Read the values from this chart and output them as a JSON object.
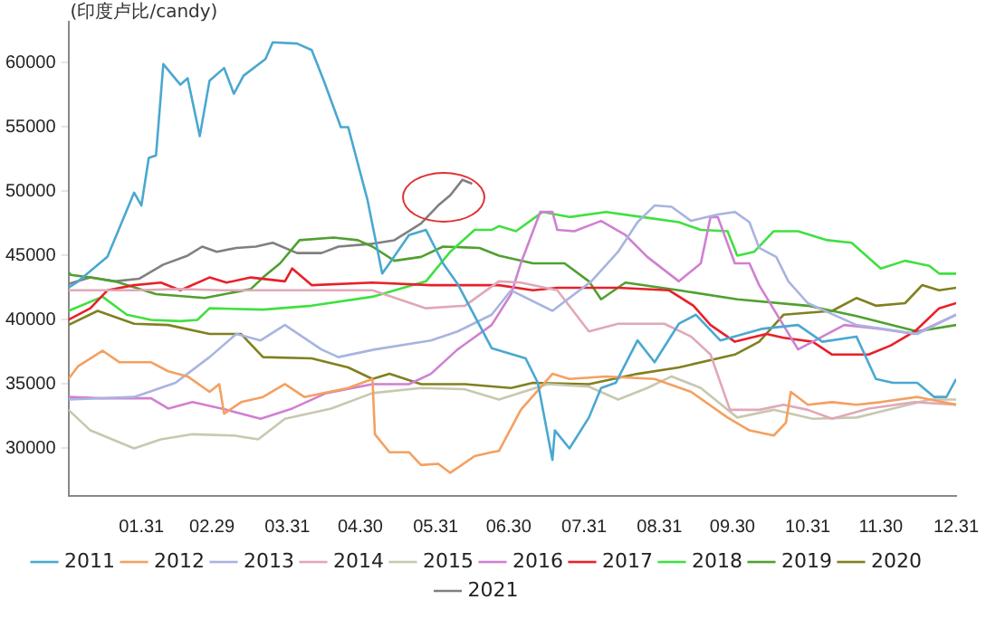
{
  "chart_data": {
    "type": "line",
    "ylabel": "(印度卢比/candy)",
    "xlim": [
      "--01-01",
      "--12-31"
    ],
    "ylim": [
      26300,
      63200
    ],
    "xticks": [
      {
        "value": "--01-31",
        "label": "01.31"
      },
      {
        "value": "--02-29",
        "label": "02.29"
      },
      {
        "value": "--03-31",
        "label": "03.31"
      },
      {
        "value": "--04-30",
        "label": "04.30"
      },
      {
        "value": "--05-31",
        "label": "05.31"
      },
      {
        "value": "--06-30",
        "label": "06.30"
      },
      {
        "value": "--07-31",
        "label": "07.31"
      },
      {
        "value": "--08-31",
        "label": "08.31"
      },
      {
        "value": "--09-30",
        "label": "09.30"
      },
      {
        "value": "--10-31",
        "label": "10.31"
      },
      {
        "value": "--11-30",
        "label": "11.30"
      },
      {
        "value": "--12-31",
        "label": "12.31"
      }
    ],
    "yticks": [
      30000,
      35000,
      40000,
      45000,
      50000,
      55000,
      60000
    ],
    "grid": false,
    "legend": "bottom",
    "marker": "none",
    "line_style": "solid",
    "series": [
      {
        "name": "2011",
        "color": "#4aa8d0",
        "x": [
          "--01-01",
          "--01-05",
          "--01-17",
          "--01-28",
          "--01-31",
          "--02-03",
          "--02-06",
          "--02-09",
          "--02-16",
          "--02-19",
          "--02-24",
          "--02-28",
          "--03-05",
          "--03-09",
          "--03-13",
          "--03-22",
          "--03-25",
          "--04-04",
          "--04-10",
          "--04-15",
          "--04-22",
          "--04-25",
          "--05-03",
          "--05-09",
          "--05-12",
          "--05-20",
          "--05-27",
          "--06-03",
          "--06-09",
          "--06-23",
          "--07-07",
          "--07-12",
          "--07-18",
          "--07-19",
          "--07-25",
          "--08-02",
          "--08-07",
          "--08-13",
          "--08-22",
          "--08-29",
          "--09-08",
          "--09-15",
          "--09-25",
          "--10-12",
          "--10-27",
          "--11-06",
          "--11-20",
          "--11-28",
          "--12-05",
          "--12-15",
          "--12-22",
          "--12-27",
          "--12-31"
        ],
        "values": [
          42500,
          43000,
          44900,
          49900,
          48900,
          52600,
          52800,
          59900,
          58300,
          58800,
          54300,
          58600,
          59600,
          57600,
          59000,
          60300,
          61600,
          61500,
          61000,
          58600,
          55000,
          55000,
          49300,
          43600,
          44400,
          46600,
          47000,
          44400,
          42800,
          37800,
          37000,
          35100,
          29100,
          31400,
          30000,
          32400,
          34700,
          35100,
          38400,
          36700,
          39700,
          40400,
          38400,
          39300,
          39600,
          38300,
          38700,
          35400,
          35100,
          35100,
          34000,
          34000,
          35400
        ]
      },
      {
        "name": "2012",
        "color": "#f4a060",
        "x": [
          "--01-01",
          "--01-05",
          "--01-15",
          "--01-22",
          "--02-04",
          "--02-11",
          "--02-19",
          "--02-28",
          "--03-03",
          "--03-05",
          "--03-12",
          "--03-21",
          "--03-30",
          "--04-07",
          "--04-25",
          "--05-05",
          "--05-06",
          "--05-12",
          "--05-20",
          "--05-25",
          "--06-01",
          "--06-06",
          "--06-16",
          "--06-23",
          "--06-26",
          "--07-05",
          "--07-18",
          "--07-25",
          "--08-09",
          "--08-29",
          "--09-13",
          "--09-28",
          "--10-07",
          "--10-17",
          "--10-22",
          "--10-24",
          "--10-31",
          "--11-10",
          "--11-20",
          "--11-30",
          "--12-15",
          "--12-31"
        ],
        "values": [
          35400,
          36400,
          37600,
          36700,
          36700,
          36000,
          35600,
          34400,
          35000,
          32700,
          33600,
          34000,
          35000,
          34000,
          34700,
          35400,
          31100,
          29700,
          29700,
          28700,
          28800,
          28100,
          29400,
          29700,
          29800,
          33000,
          35800,
          35400,
          35600,
          35400,
          34400,
          32400,
          31400,
          31000,
          32000,
          34400,
          33400,
          33600,
          33400,
          33600,
          34000,
          33400
        ]
      },
      {
        "name": "2013",
        "color": "#a8b4e0",
        "x": [
          "--01-01",
          "--01-28",
          "--02-14",
          "--02-28",
          "--03-10",
          "--03-20",
          "--03-30",
          "--04-14",
          "--04-21",
          "--05-06",
          "--05-29",
          "--06-09",
          "--06-23",
          "--07-01",
          "--07-18",
          "--08-03",
          "--08-14",
          "--08-22",
          "--08-29",
          "--09-05",
          "--09-13",
          "--09-24",
          "--10-01",
          "--10-07",
          "--10-11",
          "--10-18",
          "--10-23",
          "--10-31",
          "--11-20",
          "--12-15",
          "--12-31"
        ],
        "values": [
          33800,
          34000,
          35100,
          37100,
          38900,
          38400,
          39600,
          37700,
          37100,
          37700,
          38400,
          39100,
          40400,
          42300,
          40700,
          43000,
          45300,
          47600,
          48900,
          48800,
          47700,
          48200,
          48400,
          47600,
          45600,
          44900,
          43000,
          41300,
          39600,
          38900,
          40400
        ]
      },
      {
        "name": "2014",
        "color": "#e0a8b8",
        "x": [
          "--01-01",
          "--01-28",
          "--02-16",
          "--03-04",
          "--04-07",
          "--05-05",
          "--05-27",
          "--06-12",
          "--06-26",
          "--07-05",
          "--07-20",
          "--08-02",
          "--08-14",
          "--09-02",
          "--09-13",
          "--09-21",
          "--09-29",
          "--10-11",
          "--10-21",
          "--10-31",
          "--11-10",
          "--11-25",
          "--12-14",
          "--12-31"
        ],
        "values": [
          42300,
          42300,
          42400,
          42300,
          42300,
          42300,
          40900,
          41100,
          43000,
          42900,
          42300,
          39100,
          39700,
          39700,
          38700,
          37300,
          33000,
          33000,
          33400,
          33000,
          32300,
          33100,
          33600,
          33400
        ]
      },
      {
        "name": "2015",
        "color": "#c8c8b0",
        "x": [
          "--01-01",
          "--01-10",
          "--01-28",
          "--02-08",
          "--02-21",
          "--03-09",
          "--03-19",
          "--03-30",
          "--04-18",
          "--05-05",
          "--05-25",
          "--06-12",
          "--06-26",
          "--07-16",
          "--08-02",
          "--08-14",
          "--08-26",
          "--09-05",
          "--09-17",
          "--10-02",
          "--10-17",
          "--11-02",
          "--11-20",
          "--12-05",
          "--12-20",
          "--12-31"
        ],
        "values": [
          33000,
          31400,
          30000,
          30700,
          31100,
          31000,
          30700,
          32300,
          33100,
          34300,
          34700,
          34600,
          33800,
          35000,
          34800,
          33800,
          34700,
          35600,
          34700,
          32400,
          33000,
          32300,
          32400,
          33100,
          33800,
          33800
        ]
      },
      {
        "name": "2016",
        "color": "#d080d0",
        "x": [
          "--01-01",
          "--01-15",
          "--02-04",
          "--02-11",
          "--02-21",
          "--03-06",
          "--03-20",
          "--04-02",
          "--04-16",
          "--05-05",
          "--05-20",
          "--05-29",
          "--06-09",
          "--06-23",
          "--07-01",
          "--07-05",
          "--07-13",
          "--07-18",
          "--07-20",
          "--07-27",
          "--08-07",
          "--08-17",
          "--08-26",
          "--09-08",
          "--09-17",
          "--09-21",
          "--09-24",
          "--10-01",
          "--10-07",
          "--10-11",
          "--10-27",
          "--11-15",
          "--11-30",
          "--12-14",
          "--12-31"
        ],
        "values": [
          34000,
          33900,
          33900,
          33100,
          33600,
          33000,
          32300,
          33100,
          34300,
          35000,
          35000,
          35800,
          37700,
          39600,
          42000,
          44400,
          48400,
          48400,
          47000,
          46900,
          47700,
          46600,
          44900,
          43000,
          44400,
          48000,
          48000,
          44400,
          44400,
          42700,
          37700,
          39600,
          39300,
          38900,
          40400
        ]
      },
      {
        "name": "2017",
        "color": "#e8202a",
        "x": [
          "--01-01",
          "--01-10",
          "--01-17",
          "--01-28",
          "--02-08",
          "--02-16",
          "--02-28",
          "--03-06",
          "--03-16",
          "--03-30",
          "--04-02",
          "--04-10",
          "--05-05",
          "--05-29",
          "--06-11",
          "--06-26",
          "--07-10",
          "--07-20",
          "--08-14",
          "--09-04",
          "--09-14",
          "--09-21",
          "--10-01",
          "--10-14",
          "--10-21",
          "--11-02",
          "--11-10",
          "--11-25",
          "--12-04",
          "--12-14",
          "--12-24",
          "--12-31"
        ],
        "values": [
          40000,
          40900,
          42300,
          42700,
          42900,
          42300,
          43300,
          42900,
          43300,
          43000,
          44000,
          42700,
          42900,
          42700,
          42700,
          42700,
          42300,
          42500,
          42500,
          42300,
          41100,
          39600,
          38300,
          38900,
          38600,
          38300,
          37300,
          37300,
          38000,
          39100,
          40900,
          41300
        ]
      },
      {
        "name": "2018",
        "color": "#40e040",
        "x": [
          "--01-01",
          "--01-15",
          "--01-25",
          "--02-04",
          "--02-16",
          "--02-23",
          "--02-28",
          "--03-21",
          "--04-10",
          "--05-05",
          "--05-27",
          "--06-06",
          "--06-16",
          "--06-23",
          "--06-26",
          "--07-03",
          "--07-14",
          "--07-25",
          "--08-09",
          "--08-24",
          "--09-08",
          "--09-17",
          "--09-28",
          "--10-02",
          "--10-09",
          "--10-17",
          "--10-27",
          "--11-08",
          "--11-18",
          "--11-30",
          "--12-10",
          "--12-20",
          "--12-24",
          "--12-31"
        ],
        "values": [
          40700,
          41800,
          40400,
          40000,
          39900,
          40000,
          40900,
          40800,
          41100,
          41800,
          43000,
          45300,
          47000,
          47000,
          47300,
          46900,
          48400,
          48000,
          48400,
          48000,
          47600,
          47000,
          46900,
          45000,
          45300,
          46900,
          46900,
          46200,
          46000,
          44000,
          44600,
          44200,
          43600,
          43600
        ]
      },
      {
        "name": "2019",
        "color": "#50a030",
        "x": [
          "--01-01",
          "--01-02",
          "--01-10",
          "--01-20",
          "--02-06",
          "--02-26",
          "--03-16",
          "--03-21",
          "--03-28",
          "--04-05",
          "--04-19",
          "--04-29",
          "--05-05",
          "--05-14",
          "--05-25",
          "--06-03",
          "--06-18",
          "--06-26",
          "--07-10",
          "--07-23",
          "--08-02",
          "--08-07",
          "--08-17",
          "--09-08",
          "--10-02",
          "--10-31",
          "--11-20",
          "--12-15",
          "--12-31"
        ],
        "values": [
          43700,
          43500,
          43300,
          43000,
          42000,
          41700,
          42400,
          43300,
          44400,
          46200,
          46400,
          46200,
          45700,
          44600,
          44900,
          45700,
          45600,
          45000,
          44400,
          44400,
          43000,
          41600,
          42900,
          42300,
          41600,
          41100,
          40300,
          39100,
          39600
        ]
      },
      {
        "name": "2020",
        "color": "#808020",
        "x": [
          "--01-01",
          "--01-13",
          "--01-28",
          "--02-11",
          "--02-28",
          "--03-12",
          "--03-21",
          "--04-10",
          "--04-25",
          "--05-05",
          "--05-12",
          "--05-25",
          "--06-12",
          "--07-01",
          "--07-10",
          "--08-02",
          "--08-22",
          "--09-08",
          "--10-01",
          "--10-11",
          "--10-21",
          "--11-10",
          "--11-20",
          "--11-28",
          "--12-10",
          "--12-17",
          "--12-24",
          "--12-31"
        ],
        "values": [
          39600,
          40700,
          39700,
          39600,
          38900,
          38900,
          37100,
          37000,
          36300,
          35400,
          35800,
          35000,
          35000,
          34700,
          35100,
          35000,
          35800,
          36300,
          37300,
          38300,
          40400,
          40700,
          41700,
          41100,
          41300,
          42700,
          42300,
          42500
        ]
      },
      {
        "name": "2021",
        "color": "#808080",
        "x": [
          "--01-01",
          "--01-10",
          "--01-20",
          "--01-30",
          "--02-09",
          "--02-19",
          "--02-25",
          "--03-02",
          "--03-10",
          "--03-18",
          "--03-25",
          "--04-04",
          "--04-14",
          "--04-21",
          "--05-04",
          "--05-14",
          "--05-25",
          "--06-01",
          "--06-06",
          "--06-11",
          "--06-15"
        ],
        "values": [
          42800,
          43300,
          43000,
          43200,
          44300,
          45000,
          45700,
          45300,
          45600,
          45700,
          46000,
          45200,
          45200,
          45700,
          45900,
          46200,
          47500,
          48900,
          49700,
          50900,
          50600
        ]
      }
    ]
  }
}
